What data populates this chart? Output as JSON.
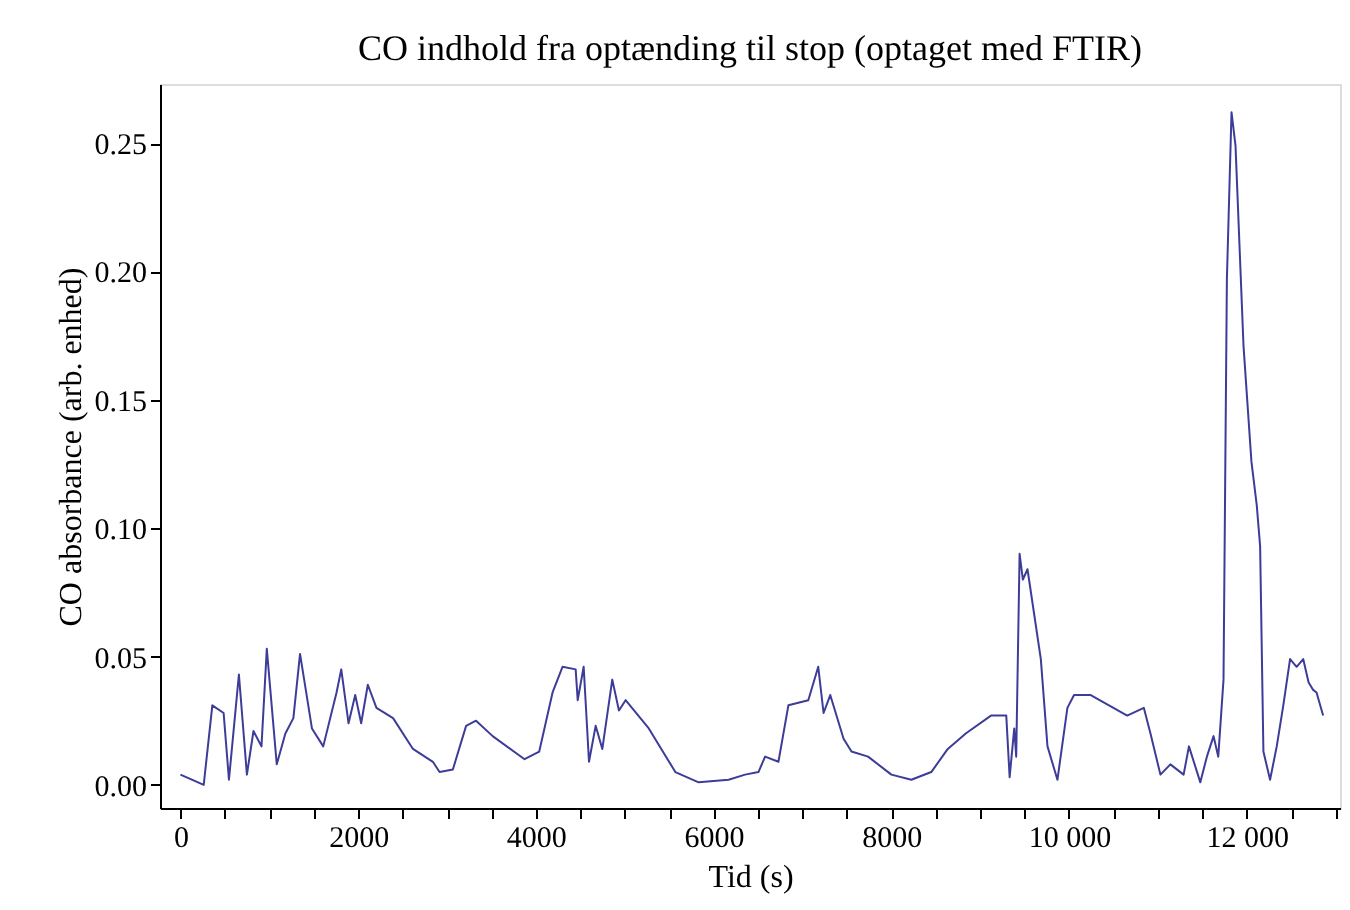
{
  "chart_data": {
    "type": "line",
    "title": "CO indhold fra optænding til stop (optaget med FTIR)",
    "xlabel": "Tid (s)",
    "ylabel": "CO absorbance (arb. enhed)",
    "grid": false,
    "marker": "none",
    "line_style": "solid",
    "xlim": [
      -230,
      13050
    ],
    "ylim": [
      -0.009,
      0.273
    ],
    "xticks": [
      {
        "value": 0,
        "label": "0"
      },
      {
        "value": 500,
        "label": null
      },
      {
        "value": 1000,
        "label": null
      },
      {
        "value": 1500,
        "label": null
      },
      {
        "value": 2000,
        "label": "2000"
      },
      {
        "value": 2500,
        "label": null
      },
      {
        "value": 3000,
        "label": null
      },
      {
        "value": 3500,
        "label": null
      },
      {
        "value": 4000,
        "label": "4000"
      },
      {
        "value": 4500,
        "label": null
      },
      {
        "value": 5000,
        "label": null
      },
      {
        "value": 5500,
        "label": null
      },
      {
        "value": 6000,
        "label": "6000"
      },
      {
        "value": 6500,
        "label": null
      },
      {
        "value": 7000,
        "label": null
      },
      {
        "value": 7500,
        "label": null
      },
      {
        "value": 8000,
        "label": "8000"
      },
      {
        "value": 8500,
        "label": null
      },
      {
        "value": 9000,
        "label": null
      },
      {
        "value": 9500,
        "label": null
      },
      {
        "value": 10000,
        "label": "10 000"
      },
      {
        "value": 10500,
        "label": null
      },
      {
        "value": 11000,
        "label": null
      },
      {
        "value": 11500,
        "label": null
      },
      {
        "value": 12000,
        "label": "12 000"
      },
      {
        "value": 12500,
        "label": null
      },
      {
        "value": 13000,
        "label": null
      }
    ],
    "yticks": [
      {
        "value": 0,
        "label": "0.00"
      },
      {
        "value": 0.05,
        "label": "0.05"
      },
      {
        "value": 0.1,
        "label": "0.10"
      },
      {
        "value": 0.15,
        "label": "0.15"
      },
      {
        "value": 0.2,
        "label": "0.20"
      },
      {
        "value": 0.25,
        "label": "0.25"
      }
    ],
    "series": [
      {
        "color": "#3d3d99",
        "x": [
          0,
          262,
          359,
          486,
          546,
          658,
          748,
          822,
          912,
          972,
          1084,
          1181,
          1271,
          1346,
          1480,
          1607,
          1757,
          1810,
          1892,
          1967,
          2034,
          2109,
          2206,
          2393,
          2617,
          2841,
          2916,
          3066,
          3215,
          3327,
          3514,
          3873,
          4038,
          4188,
          4300,
          4448,
          4471,
          4538,
          4598,
          4673,
          4748,
          4860,
          4935,
          5010,
          5271,
          5570,
          5832,
          6169,
          6355,
          6505,
          6580,
          6730,
          6842,
          7066,
          7178,
          7238,
          7313,
          7463,
          7552,
          7739,
          8001,
          8226,
          8450,
          8636,
          8838,
          9122,
          9294,
          9332,
          9384,
          9406,
          9444,
          9481,
          9533,
          9683,
          9758,
          9870,
          9982,
          10057,
          10245,
          10655,
          10842,
          10917,
          11029,
          11141,
          11290,
          11350,
          11478,
          11552,
          11627,
          11680,
          11739,
          11777,
          11829,
          11874,
          11964,
          12053,
          12113,
          12151,
          12188,
          12263,
          12338,
          12412,
          12488,
          12562,
          12636,
          12696,
          12748,
          12786,
          12860
        ],
        "values": [
          0.004,
          0.0,
          0.031,
          0.028,
          0.002,
          0.043,
          0.004,
          0.021,
          0.015,
          0.053,
          0.008,
          0.02,
          0.026,
          0.051,
          0.022,
          0.015,
          0.036,
          0.045,
          0.024,
          0.035,
          0.024,
          0.039,
          0.03,
          0.026,
          0.014,
          0.009,
          0.005,
          0.006,
          0.023,
          0.025,
          0.019,
          0.01,
          0.013,
          0.036,
          0.046,
          0.045,
          0.033,
          0.046,
          0.009,
          0.023,
          0.014,
          0.041,
          0.029,
          0.033,
          0.022,
          0.005,
          0.001,
          0.002,
          0.004,
          0.005,
          0.011,
          0.009,
          0.031,
          0.033,
          0.046,
          0.028,
          0.035,
          0.018,
          0.013,
          0.011,
          0.004,
          0.002,
          0.005,
          0.014,
          0.02,
          0.027,
          0.027,
          0.003,
          0.022,
          0.011,
          0.09,
          0.08,
          0.084,
          0.049,
          0.015,
          0.002,
          0.03,
          0.035,
          0.035,
          0.027,
          0.03,
          0.02,
          0.004,
          0.008,
          0.004,
          0.015,
          0.001,
          0.011,
          0.019,
          0.011,
          0.041,
          0.197,
          0.262,
          0.249,
          0.171,
          0.126,
          0.109,
          0.093,
          0.013,
          0.002,
          0.015,
          0.031,
          0.049,
          0.046,
          0.049,
          0.04,
          0.037,
          0.036,
          0.027
        ]
      }
    ]
  }
}
